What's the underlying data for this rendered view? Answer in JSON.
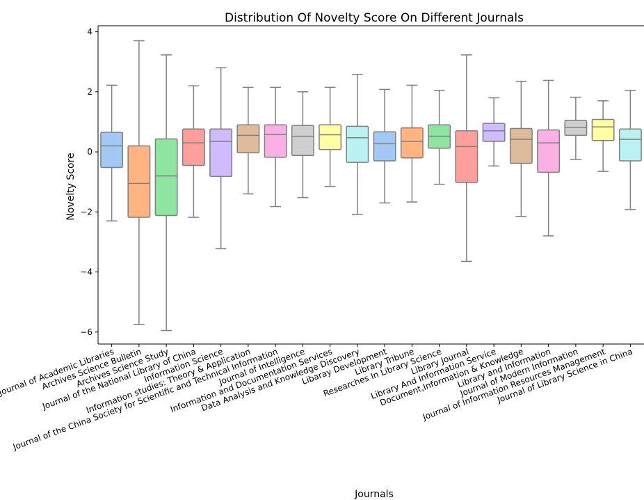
{
  "chart_data": {
    "type": "box",
    "title": "Distribution Of Novelty Score On Different Journals",
    "xlabel": "Journals",
    "ylabel": "Novelty Score",
    "ylim": [
      -6.4,
      4.2
    ],
    "yticks": [
      4,
      2,
      0,
      -2,
      -4,
      -6
    ],
    "grid": false,
    "categories": [
      "Journal of Academic Libraries",
      "Archives Science Bulletin",
      "Archives Science Study",
      "Journal of the National Library of China",
      "Information Science",
      "Information studies: Theory & Application",
      "Journal of the China Society for Scientific and Technical Information",
      "Journal of Intelligence",
      "Information and Documentation Services",
      "Data Analysis and Knowledge Discovery",
      "Libaray Development",
      "Library Tribune",
      "Researches In Library Science",
      "Library Journal",
      "Library And Information Service",
      "Document,Information & Knowledge",
      "Library and Information",
      "Journal of Modern Information",
      "Journal of Information Resources Management",
      "Journal of Library Science in China"
    ],
    "colors": [
      "#a1c9f4",
      "#ffb482",
      "#8de5a1",
      "#ff9f9b",
      "#d0bbff",
      "#debb9b",
      "#fab0e4",
      "#cfcfcf",
      "#fffea3",
      "#b9f2f0"
    ],
    "boxes": [
      {
        "whislo": -2.3,
        "q1": -0.52,
        "med": 0.2,
        "q3": 0.65,
        "whishi": 2.22
      },
      {
        "whislo": -5.75,
        "q1": -2.18,
        "med": -1.05,
        "q3": 0.2,
        "whishi": 3.7
      },
      {
        "whislo": -5.95,
        "q1": -2.12,
        "med": -0.8,
        "q3": 0.43,
        "whishi": 3.23
      },
      {
        "whislo": -2.18,
        "q1": -0.45,
        "med": 0.3,
        "q3": 0.76,
        "whishi": 2.2
      },
      {
        "whislo": -3.22,
        "q1": -0.82,
        "med": 0.35,
        "q3": 0.76,
        "whishi": 2.8
      },
      {
        "whislo": -1.4,
        "q1": -0.03,
        "med": 0.55,
        "q3": 0.9,
        "whishi": 2.15
      },
      {
        "whislo": -1.82,
        "q1": -0.18,
        "med": 0.58,
        "q3": 0.9,
        "whishi": 2.15
      },
      {
        "whislo": -1.52,
        "q1": -0.12,
        "med": 0.52,
        "q3": 0.88,
        "whishi": 2.0
      },
      {
        "whislo": -1.15,
        "q1": 0.08,
        "med": 0.57,
        "q3": 0.9,
        "whishi": 2.15
      },
      {
        "whislo": -2.08,
        "q1": -0.35,
        "med": 0.47,
        "q3": 0.85,
        "whishi": 2.58
      },
      {
        "whislo": -1.7,
        "q1": -0.3,
        "med": 0.27,
        "q3": 0.67,
        "whishi": 2.08
      },
      {
        "whislo": -1.67,
        "q1": -0.2,
        "med": 0.35,
        "q3": 0.8,
        "whishi": 2.22
      },
      {
        "whislo": -1.08,
        "q1": 0.12,
        "med": 0.52,
        "q3": 0.9,
        "whishi": 2.05
      },
      {
        "whislo": -3.65,
        "q1": -1.02,
        "med": 0.18,
        "q3": 0.7,
        "whishi": 3.23
      },
      {
        "whislo": -0.47,
        "q1": 0.35,
        "med": 0.7,
        "q3": 0.95,
        "whishi": 1.8
      },
      {
        "whislo": -2.15,
        "q1": -0.38,
        "med": 0.42,
        "q3": 0.78,
        "whishi": 2.35
      },
      {
        "whislo": -2.8,
        "q1": -0.68,
        "med": 0.3,
        "q3": 0.73,
        "whishi": 2.38
      },
      {
        "whislo": -0.25,
        "q1": 0.55,
        "med": 0.82,
        "q3": 1.05,
        "whishi": 1.82
      },
      {
        "whislo": -0.65,
        "q1": 0.38,
        "med": 0.83,
        "q3": 1.08,
        "whishi": 1.7
      },
      {
        "whislo": -1.92,
        "q1": -0.3,
        "med": 0.42,
        "q3": 0.76,
        "whishi": 2.05
      }
    ]
  }
}
